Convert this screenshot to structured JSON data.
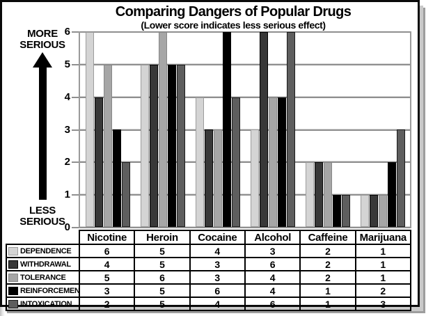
{
  "chart_data": {
    "type": "bar",
    "title": "Comparing Dangers of Popular Drugs",
    "subtitle": "(Lower score indicates less serious effect)",
    "categories": [
      "Nicotine",
      "Heroin",
      "Cocaine",
      "Alcohol",
      "Caffeine",
      "Marijuana"
    ],
    "series": [
      {
        "name": "DEPENDENCE",
        "color": "#d4d4d4",
        "border": "#9c9c9c",
        "values": [
          6,
          5,
          4,
          3,
          2,
          1
        ]
      },
      {
        "name": "WITHDRAWAL",
        "color": "#383838",
        "border": "#000000",
        "values": [
          4,
          5,
          3,
          6,
          2,
          1
        ]
      },
      {
        "name": "TOLERANCE",
        "color": "#a6a6a6",
        "border": "#878787",
        "values": [
          5,
          6,
          3,
          4,
          2,
          1
        ]
      },
      {
        "name": "REINFORCEMENT",
        "color": "#000000",
        "border": "#000000",
        "values": [
          3,
          5,
          6,
          4,
          1,
          2
        ]
      },
      {
        "name": "INTOXICATION",
        "color": "#5e5e5e",
        "border": "#1a1a1a",
        "values": [
          2,
          5,
          4,
          6,
          1,
          3
        ]
      }
    ],
    "ylim": [
      0,
      6
    ],
    "yticks": [
      0,
      1,
      2,
      3,
      4,
      5,
      6
    ],
    "axis_annotations": {
      "top": "MORE SERIOUS",
      "bottom": "LESS SERIOUS"
    },
    "grid": true,
    "gridline_color": "#8f8f8f",
    "legend_position": "table-left-column"
  }
}
